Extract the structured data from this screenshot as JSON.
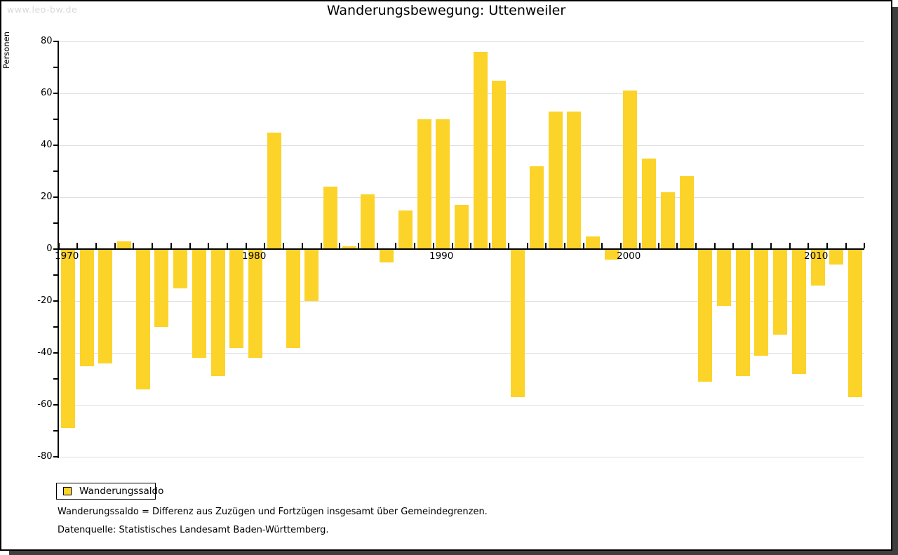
{
  "watermark": "www.leo-bw.de",
  "title": "Wanderungsbewegung: Uttenweiler",
  "y_axis": {
    "label": "Personen",
    "major_ticks": [
      80,
      60,
      40,
      20,
      0,
      -20,
      -40,
      -60,
      -80
    ],
    "minor_step": 10
  },
  "x_axis": {
    "decade_labels": [
      {
        "label": "1970",
        "year": 1970
      },
      {
        "label": "1980",
        "year": 1980
      },
      {
        "label": "1990",
        "year": 1990
      },
      {
        "label": "2000",
        "year": 2000
      },
      {
        "label": "2010",
        "year": 2010
      }
    ]
  },
  "legend": {
    "label": "Wanderungssaldo",
    "swatch_color": "#fcd329"
  },
  "footnotes": [
    "Wanderungssaldo = Differenz aus Zuzügen und Fortzügen insgesamt über Gemeindegrenzen.",
    "Datenquelle: Statistisches Landesamt Baden-Württemberg."
  ],
  "colors": {
    "bar": "#fcd329",
    "gridline": "#e0e0e0",
    "axis": "#000000",
    "watermark": "#d9d9d9",
    "shadow": "#3f3f3f"
  },
  "chart_data": {
    "type": "bar",
    "title": "Wanderungsbewegung: Uttenweiler",
    "xlabel": "",
    "ylabel": "Personen",
    "ylim": [
      -80,
      80
    ],
    "grid": true,
    "legend_position": "bottom-left",
    "series_name": "Wanderungssaldo",
    "categories": [
      1970,
      1971,
      1972,
      1973,
      1974,
      1975,
      1976,
      1977,
      1978,
      1979,
      1980,
      1981,
      1982,
      1983,
      1984,
      1985,
      1986,
      1987,
      1988,
      1989,
      1990,
      1991,
      1992,
      1993,
      1994,
      1995,
      1996,
      1997,
      1998,
      1999,
      2000,
      2001,
      2002,
      2003,
      2004,
      2005,
      2006,
      2007,
      2008,
      2009,
      2010,
      2011,
      2012
    ],
    "values": [
      -69,
      -45,
      -44,
      3,
      -54,
      -30,
      -15,
      -42,
      -49,
      -38,
      -42,
      45,
      -38,
      -20,
      24,
      1,
      21,
      -5,
      15,
      50,
      50,
      17,
      76,
      65,
      -57,
      32,
      53,
      53,
      5,
      -4,
      61,
      35,
      22,
      28,
      -51,
      -22,
      -49,
      -41,
      -33,
      -48,
      -14,
      -6,
      -57
    ]
  }
}
